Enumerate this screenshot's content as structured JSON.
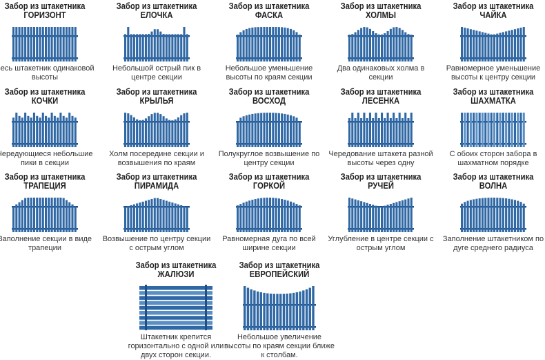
{
  "prefix": "Забор из штакетника",
  "colors": {
    "picket": "#2f68a5",
    "picket_light": "#5a8fc6",
    "rail": "#1f4f85"
  },
  "items": [
    {
      "name": "ГОРИЗОНТ",
      "desc": "Весь штакетник одинаковой высоты",
      "profile": "flat"
    },
    {
      "name": "ЕЛОЧКА",
      "desc": "Небольшой острый пик в центре секции",
      "profile": "small-peak"
    },
    {
      "name": "ФАСКА",
      "desc": "Небольшое уменьшение высоты по краям секции",
      "profile": "chamfer"
    },
    {
      "name": "ХОЛМЫ",
      "desc": "Два одинаковых холма в секции",
      "profile": "two-hills"
    },
    {
      "name": "ЧАЙКА",
      "desc": "Равномерное уменьшение высоты к центру секции",
      "profile": "gull"
    },
    {
      "name": "КОЧКИ",
      "desc": "Чередующиеся небольшие пики в секции",
      "profile": "bumps"
    },
    {
      "name": "КРЫЛЬЯ",
      "desc": "Холм посередине секции и возвышения по краям",
      "profile": "wings"
    },
    {
      "name": "ВОСХОД",
      "desc": "Полукруглое возвышение по центру секции",
      "profile": "sunrise"
    },
    {
      "name": "ЛЕСЕНКА",
      "desc": "Чередование штакета разной высоты через одну",
      "profile": "ladder"
    },
    {
      "name": "ШАХМАТКА",
      "desc": "С обоих сторон забора в шахматном порядке",
      "profile": "chess"
    },
    {
      "name": "ТРАПЕЦИЯ",
      "desc": "Заполнение секции в виде трапеции",
      "profile": "trapezoid"
    },
    {
      "name": "ПИРАМИДА",
      "desc": "Возвышение по центру секции с острым углом",
      "profile": "pyramid"
    },
    {
      "name": "ГОРКОЙ",
      "desc": "Равномерная дуга по всей ширине секции",
      "profile": "arc"
    },
    {
      "name": "РУЧЕЙ",
      "desc": "Углубление в центре секции с острым углом",
      "profile": "stream"
    },
    {
      "name": "ВОЛНА",
      "desc": "Заполнение штакетником по дуге среднего радиуса",
      "profile": "wave"
    },
    {
      "name": "ЖАЛЮЗИ",
      "desc": "Штакетник крепится горизонтально с одной или двух сторон секции.",
      "profile": "horizontal"
    },
    {
      "name": "ЕВРОПЕЙСКИЙ",
      "desc": "Небольшое увеличение высоты по краям секции ближе к столбам.",
      "profile": "european"
    }
  ]
}
